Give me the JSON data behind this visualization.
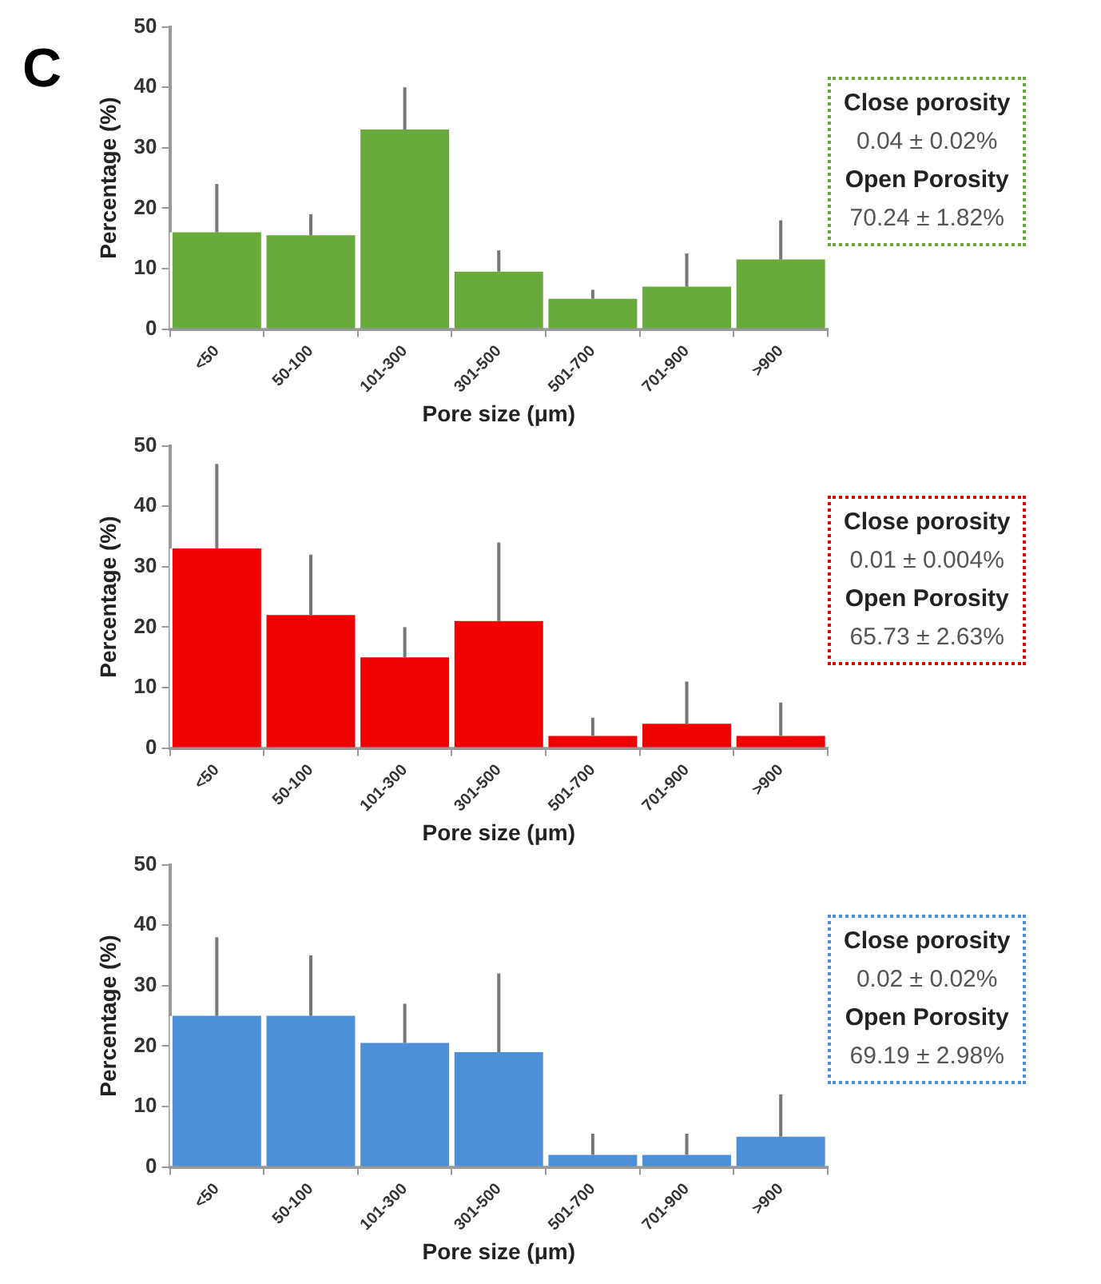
{
  "chart_data": [
    {
      "type": "bar",
      "title": "C",
      "categories": [
        "<50",
        "50-100",
        "101-300",
        "301-500",
        "501-700",
        "701-900",
        ">900"
      ],
      "values": [
        16,
        15.5,
        33,
        9.5,
        5,
        7,
        11.5
      ],
      "errors": [
        [
          16,
          24
        ],
        [
          15.5,
          19
        ],
        [
          33,
          40
        ],
        [
          9.5,
          13
        ],
        [
          5,
          6.5
        ],
        [
          7,
          12.5
        ],
        [
          11.5,
          18
        ]
      ],
      "color": "#6aaa3c",
      "xlabel": "Pore size (μm)",
      "ylabel": "Percentage (%)",
      "ylim": [
        0,
        50
      ],
      "yticks": [
        0,
        10,
        20,
        30,
        40,
        50
      ],
      "grid": false,
      "legend": false,
      "annotations": [
        "Close porosity",
        "0.04 ± 0.02%",
        "Open Porosity",
        "70.24 ± 1.82%"
      ]
    },
    {
      "type": "bar",
      "categories": [
        "<50",
        "50-100",
        "101-300",
        "301-500",
        "501-700",
        "701-900",
        ">900"
      ],
      "values": [
        33,
        22,
        15,
        21,
        2,
        4,
        2
      ],
      "errors": [
        [
          33,
          47
        ],
        [
          22,
          32
        ],
        [
          15,
          20
        ],
        [
          21,
          34
        ],
        [
          2,
          5
        ],
        [
          4,
          11
        ],
        [
          2,
          7.5
        ]
      ],
      "color": "#f00000",
      "xlabel": "Pore size (μm)",
      "ylabel": "Percentage (%)",
      "ylim": [
        0,
        50
      ],
      "yticks": [
        0,
        10,
        20,
        30,
        40,
        50
      ],
      "grid": false,
      "legend": false,
      "annotations": [
        "Close porosity",
        "0.01 ± 0.004%",
        "Open Porosity",
        "65.73 ± 2.63%"
      ]
    },
    {
      "type": "bar",
      "categories": [
        "<50",
        "50-100",
        "101-300",
        "301-500",
        "501-700",
        "701-900",
        ">900"
      ],
      "values": [
        25,
        25,
        20.5,
        19,
        2,
        2,
        5
      ],
      "errors": [
        [
          25,
          38
        ],
        [
          25,
          35
        ],
        [
          20.5,
          27
        ],
        [
          19,
          32
        ],
        [
          2,
          5.5
        ],
        [
          2,
          5.5
        ],
        [
          5,
          12
        ]
      ],
      "color": "#4d90d8",
      "xlabel": "Pore size (μm)",
      "ylabel": "Percentage (%)",
      "ylim": [
        0,
        50
      ],
      "yticks": [
        0,
        10,
        20,
        30,
        40,
        50
      ],
      "grid": false,
      "legend": false,
      "annotations": [
        "Close porosity",
        "0.02 ± 0.02%",
        "Open Porosity",
        "69.19 ± 2.98%"
      ]
    }
  ]
}
